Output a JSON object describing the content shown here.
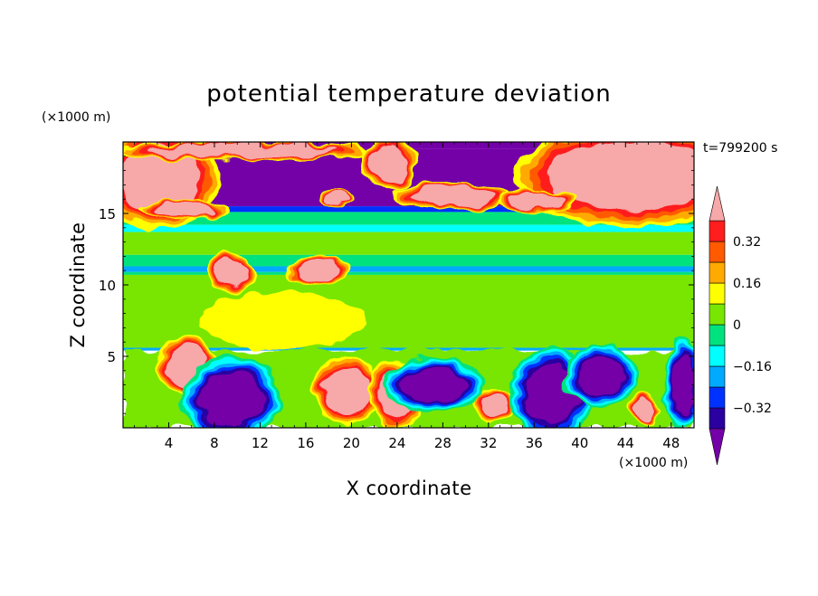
{
  "chart_data": {
    "type": "heatmap",
    "title": "potential temperature deviation",
    "xlabel": "X coordinate",
    "ylabel": "Z coordinate",
    "x_unit": "(×1000 m)",
    "y_unit": "(×1000 m)",
    "time_label": "t=799200 s",
    "xlim": [
      0,
      50
    ],
    "ylim": [
      0,
      20
    ],
    "x_ticks": [
      4,
      8,
      12,
      16,
      20,
      24,
      28,
      32,
      36,
      40,
      44,
      48
    ],
    "y_ticks": [
      5,
      10,
      15
    ],
    "colorbar": {
      "levels": [
        -0.4,
        -0.32,
        -0.24,
        -0.16,
        -0.08,
        0,
        0.08,
        0.16,
        0.24,
        0.32,
        0.4
      ],
      "tick_values": [
        0.32,
        0.16,
        0,
        -0.16,
        -0.32
      ],
      "tick_labels": [
        "0.32",
        "0.16",
        "0",
        "−0.16",
        "−0.32"
      ],
      "colors": [
        "#7400a8",
        "#2a00a0",
        "#0032ff",
        "#00aaff",
        "#00ffff",
        "#00e27e",
        "#78e600",
        "#ffff00",
        "#ffaa00",
        "#ff5a00",
        "#ff1e1e",
        "#f7a8a8"
      ],
      "extend": "both"
    },
    "bands": [
      {
        "z_range": [
          19.5,
          20
        ],
        "value": -0.45
      },
      {
        "z_range": [
          15.5,
          19.5
        ],
        "value": -0.45
      },
      {
        "z_range": [
          15.1,
          15.5
        ],
        "value": -0.28
      },
      {
        "z_range": [
          14.2,
          15.1
        ],
        "value": -0.08
      },
      {
        "z_range": [
          13.7,
          14.2
        ],
        "value": -0.12
      },
      {
        "z_range": [
          12.1,
          13.7
        ],
        "value": 0.04
      },
      {
        "z_range": [
          11.3,
          12.1
        ],
        "value": -0.08
      },
      {
        "z_range": [
          10.9,
          11.3
        ],
        "value": -0.2
      },
      {
        "z_range": [
          10.7,
          10.9
        ],
        "value": -0.08
      },
      {
        "z_range": [
          5.6,
          10.7
        ],
        "value": 0.04
      },
      {
        "z_range": [
          5.4,
          5.6
        ],
        "value": -0.2
      }
    ],
    "features": [
      {
        "x": 3.2,
        "z": 17.5,
        "rx": 3.2,
        "rz": 2.3,
        "value": 0.45
      },
      {
        "x": 10.5,
        "z": 19.4,
        "rx": 7.2,
        "rz": 0.45,
        "value": 0.45
      },
      {
        "x": 5.5,
        "z": 15.3,
        "rx": 2.5,
        "rz": 0.4,
        "value": 0.45
      },
      {
        "x": 23.3,
        "z": 18.4,
        "rx": 1.5,
        "rz": 1.2,
        "value": 0.45
      },
      {
        "x": 44.5,
        "z": 17.6,
        "rx": 6.5,
        "rz": 2.2,
        "value": 0.45
      },
      {
        "x": 28.8,
        "z": 16.2,
        "rx": 3.2,
        "rz": 0.6,
        "value": 0.45
      },
      {
        "x": 36.3,
        "z": 16.0,
        "rx": 2.2,
        "rz": 0.5,
        "value": 0.45
      },
      {
        "x": 18.8,
        "z": 16.2,
        "rx": 1.0,
        "rz": 0.35,
        "value": 0.45
      },
      {
        "x": 9.5,
        "z": 10.8,
        "rx": 1.3,
        "rz": 0.9,
        "value": 0.45
      },
      {
        "x": 17.0,
        "z": 11.0,
        "rx": 1.7,
        "rz": 0.6,
        "value": 0.45
      },
      {
        "x": 12.0,
        "z": 7.8,
        "rx": 2.1,
        "rz": 1.5,
        "value": 0.16
      },
      {
        "x": 14.0,
        "z": 7.5,
        "rx": 6.5,
        "rz": 1.8,
        "value": 0.1
      },
      {
        "x": 5.5,
        "z": 4.3,
        "rx": 1.6,
        "rz": 1.3,
        "value": 0.45
      },
      {
        "x": 19.7,
        "z": 2.6,
        "rx": 1.9,
        "rz": 1.5,
        "value": 0.45
      },
      {
        "x": 24.0,
        "z": 2.4,
        "rx": 1.5,
        "rz": 1.5,
        "value": 0.45
      },
      {
        "x": 32.5,
        "z": 1.5,
        "rx": 1.2,
        "rz": 0.8,
        "value": 0.4
      },
      {
        "x": 45.7,
        "z": 1.3,
        "rx": 0.9,
        "rz": 0.7,
        "value": 0.45
      },
      {
        "x": 9.5,
        "z": 2.0,
        "rx": 2.7,
        "rz": 1.9,
        "value": -0.45
      },
      {
        "x": 27.2,
        "z": 3.0,
        "rx": 2.8,
        "rz": 1.2,
        "value": -0.45
      },
      {
        "x": 37.5,
        "z": 2.4,
        "rx": 2.3,
        "rz": 2.0,
        "value": -0.45
      },
      {
        "x": 41.8,
        "z": 3.6,
        "rx": 2.0,
        "rz": 1.4,
        "value": -0.45
      },
      {
        "x": 49.0,
        "z": 3.0,
        "rx": 1.0,
        "rz": 2.0,
        "value": -0.45
      }
    ]
  }
}
